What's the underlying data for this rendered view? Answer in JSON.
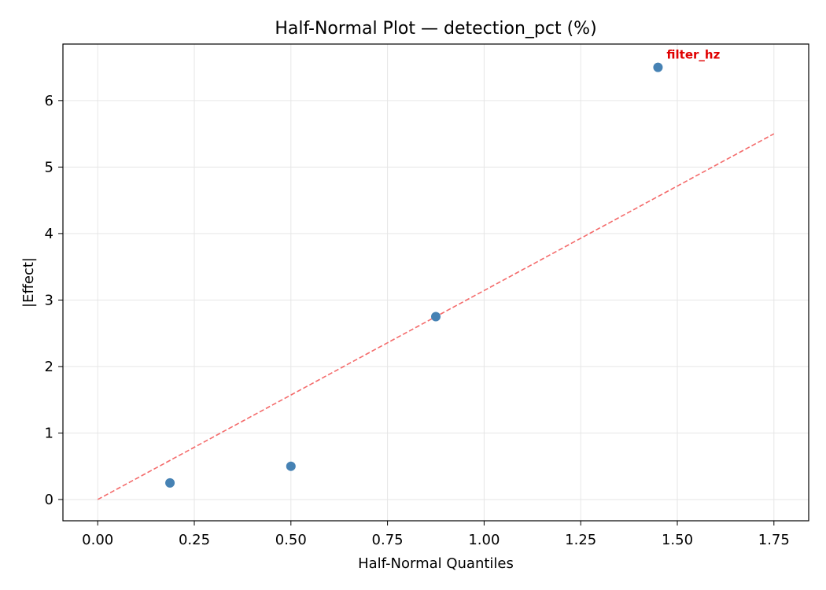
{
  "chart_data": {
    "type": "scatter",
    "title": "Half-Normal Plot — detection_pct (%)",
    "xlabel": "Half-Normal Quantiles",
    "ylabel": "|Effect|",
    "xlim": [
      -0.09,
      1.84
    ],
    "ylim": [
      -0.32,
      6.85
    ],
    "xticks": [
      0.0,
      0.25,
      0.5,
      0.75,
      1.0,
      1.25,
      1.5,
      1.75
    ],
    "xtick_labels": [
      "0.00",
      "0.25",
      "0.50",
      "0.75",
      "1.00",
      "1.25",
      "1.50",
      "1.75"
    ],
    "yticks": [
      0,
      1,
      2,
      3,
      4,
      5,
      6
    ],
    "ytick_labels": [
      "0",
      "1",
      "2",
      "3",
      "4",
      "5",
      "6"
    ],
    "grid": true,
    "points": [
      {
        "x": 0.187,
        "y": 0.25
      },
      {
        "x": 0.5,
        "y": 0.5
      },
      {
        "x": 0.875,
        "y": 2.75
      },
      {
        "x": 1.45,
        "y": 6.5
      }
    ],
    "reference_line": {
      "x": [
        0.0,
        1.75
      ],
      "y": [
        0.0,
        5.5
      ]
    },
    "annotations": [
      {
        "text": "filter_hz",
        "x": 1.45,
        "y": 6.5
      }
    ],
    "colors": {
      "points": "#4682b4",
      "reference_line": "#f46b6b",
      "annotation": "#e00000",
      "grid": "#e6e6e6"
    }
  }
}
